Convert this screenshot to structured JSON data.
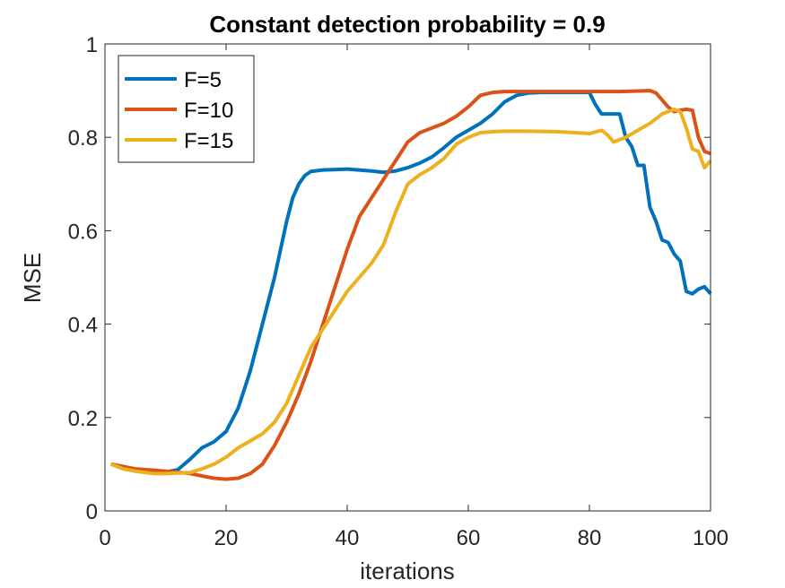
{
  "chart_data": {
    "type": "line",
    "title": "Constant detection probability = 0.9",
    "xlabel": "iterations",
    "ylabel": "MSE",
    "xlim": [
      0,
      100
    ],
    "ylim": [
      0,
      1
    ],
    "xticks": [
      0,
      20,
      40,
      60,
      80,
      100
    ],
    "yticks": [
      0,
      0.2,
      0.4,
      0.6,
      0.8,
      1
    ],
    "xtick_labels": [
      "0",
      "20",
      "40",
      "60",
      "80",
      "100"
    ],
    "ytick_labels": [
      "0",
      "0.2",
      "0.4",
      "0.6",
      "0.8",
      "1"
    ],
    "grid": false,
    "legend_position": "top-left",
    "series": [
      {
        "name": "F=5",
        "color": "#0072BD",
        "x": [
          1,
          3,
          5,
          8,
          10,
          12,
          14,
          16,
          18,
          20,
          22,
          24,
          26,
          28,
          30,
          31,
          32,
          33,
          34,
          36,
          40,
          44,
          46,
          48,
          50,
          52,
          54,
          56,
          58,
          60,
          62,
          64,
          66,
          68,
          70,
          72,
          74,
          76,
          78,
          80,
          81,
          82,
          84,
          85,
          86,
          87,
          88,
          89,
          90,
          91,
          92,
          93,
          94,
          95,
          96,
          97,
          98,
          99,
          100
        ],
        "y": [
          0.1,
          0.095,
          0.088,
          0.082,
          0.083,
          0.088,
          0.11,
          0.135,
          0.148,
          0.17,
          0.22,
          0.3,
          0.4,
          0.5,
          0.62,
          0.67,
          0.7,
          0.718,
          0.727,
          0.73,
          0.732,
          0.728,
          0.725,
          0.728,
          0.735,
          0.745,
          0.758,
          0.778,
          0.8,
          0.815,
          0.83,
          0.85,
          0.876,
          0.89,
          0.895,
          0.896,
          0.896,
          0.896,
          0.896,
          0.896,
          0.87,
          0.85,
          0.85,
          0.85,
          0.8,
          0.78,
          0.74,
          0.74,
          0.65,
          0.62,
          0.58,
          0.575,
          0.55,
          0.535,
          0.47,
          0.465,
          0.475,
          0.48,
          0.465
        ]
      },
      {
        "name": "F=10",
        "color": "#D95319",
        "x": [
          1,
          3,
          5,
          8,
          10,
          12,
          14,
          16,
          18,
          20,
          22,
          24,
          26,
          28,
          30,
          32,
          34,
          36,
          38,
          40,
          42,
          44,
          46,
          48,
          50,
          52,
          54,
          56,
          58,
          60,
          62,
          64,
          66,
          70,
          75,
          80,
          85,
          90,
          91,
          92,
          93,
          94,
          95,
          96,
          97,
          98,
          99,
          100
        ],
        "y": [
          0.1,
          0.095,
          0.09,
          0.087,
          0.085,
          0.083,
          0.08,
          0.075,
          0.07,
          0.068,
          0.07,
          0.08,
          0.1,
          0.14,
          0.19,
          0.25,
          0.32,
          0.4,
          0.48,
          0.56,
          0.63,
          0.67,
          0.71,
          0.75,
          0.79,
          0.81,
          0.82,
          0.83,
          0.845,
          0.865,
          0.89,
          0.896,
          0.898,
          0.898,
          0.898,
          0.898,
          0.898,
          0.9,
          0.895,
          0.88,
          0.865,
          0.855,
          0.858,
          0.86,
          0.858,
          0.8,
          0.77,
          0.765
        ]
      },
      {
        "name": "F=15",
        "color": "#EDB120",
        "x": [
          1,
          3,
          5,
          8,
          10,
          12,
          14,
          16,
          18,
          20,
          22,
          24,
          26,
          28,
          30,
          32,
          34,
          36,
          38,
          40,
          42,
          44,
          46,
          48,
          50,
          52,
          54,
          56,
          58,
          60,
          62,
          64,
          66,
          70,
          75,
          80,
          82,
          83,
          84,
          86,
          88,
          90,
          92,
          94,
          95,
          96,
          97,
          98,
          99,
          100
        ],
        "y": [
          0.1,
          0.09,
          0.085,
          0.08,
          0.08,
          0.081,
          0.082,
          0.09,
          0.1,
          0.115,
          0.135,
          0.15,
          0.165,
          0.19,
          0.23,
          0.29,
          0.35,
          0.39,
          0.43,
          0.47,
          0.5,
          0.53,
          0.57,
          0.64,
          0.7,
          0.72,
          0.735,
          0.755,
          0.785,
          0.8,
          0.81,
          0.812,
          0.813,
          0.813,
          0.812,
          0.808,
          0.815,
          0.805,
          0.79,
          0.8,
          0.815,
          0.83,
          0.85,
          0.86,
          0.855,
          0.82,
          0.775,
          0.77,
          0.735,
          0.75
        ]
      }
    ]
  }
}
